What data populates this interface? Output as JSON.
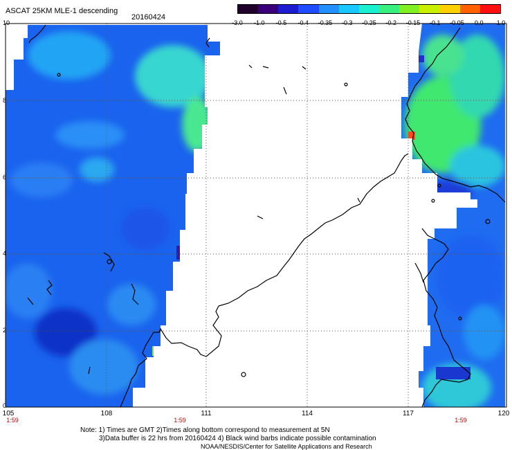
{
  "header": {
    "title": "ASCAT 25KM MLE-1 descending",
    "date": "20160424"
  },
  "colorbar": {
    "labels": [
      "-3.0",
      "-1.0",
      "-0.5",
      "-0.4",
      "-0.35",
      "-0.3",
      "-0.25",
      "-0.2",
      "-0.15",
      "-0.1",
      "-0.05",
      "0.0",
      "1.0"
    ],
    "colors": [
      "#20002a",
      "#3a007a",
      "#1c1cd0",
      "#1f4cff",
      "#2290ff",
      "#19c8ff",
      "#18f0d0",
      "#38f080",
      "#80f020",
      "#c8f000",
      "#ffd000",
      "#ff6000",
      "#ff1010"
    ]
  },
  "axes": {
    "y_labels": [
      "10",
      "8",
      "6",
      "4",
      "2",
      "0"
    ],
    "x_labels": [
      "105",
      "108",
      "111",
      "114",
      "117",
      "120"
    ],
    "x_range": [
      105,
      120
    ],
    "y_range": [
      0,
      10
    ],
    "grid": true
  },
  "times": [
    "1:59",
    "1:59",
    "1:59"
  ],
  "footer": {
    "line1": "Note: 1) Times are GMT  2)Times along bottom correspond to measurement at 5N",
    "line2": "3)Data buffer is 22 hrs from 20160424  4) Black wind barbs indicate possible contamination",
    "line3": "NOAA/NESDIS/Center for Satellite Applications and Research"
  }
}
